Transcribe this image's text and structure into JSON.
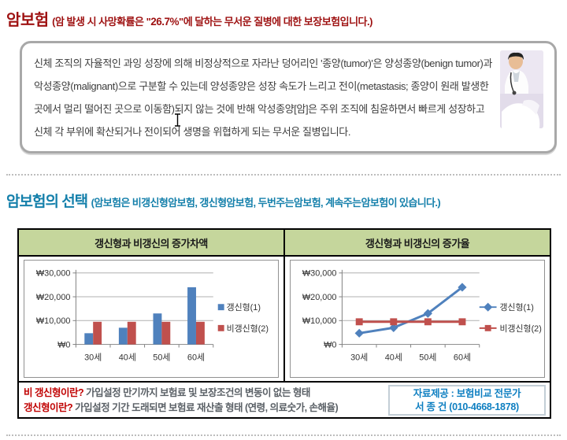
{
  "header": {
    "title": "암보험",
    "subtitle_pre": "(암 발생 시 사망확률은 \"",
    "subtitle_pct": "26.7%",
    "subtitle_post": "\"에 달하는 무서운 질병에 대한 보장보험입니다.)"
  },
  "intro": {
    "text": "신체 조직의 자율적인 과잉 성장에 의해 비정상적으로 자라난 덩어리인 '종양(tumor)'은 양성종양(benign tumor)과 악성종양(malignant)으로 구분할 수 있는데 양성종양은 성장 속도가 느리고 전이(metastasis; 종양이 원래 발생한 곳에서 멀리 떨어진 곳으로 이동함)되지 않는 것에 반해 악성종양[암]은 주위 조직에 침윤하면서 빠르게 성장하고 신체 각 부위에 확산되거나 전이되어 생명을 위협하게 되는 무서운 질병입니다."
  },
  "selection": {
    "title": "암보험의 선택",
    "subtitle": "(암보험은 비갱신형암보험, 갱신형암보험, 두번주는암보험, 계속주는암보험이 있습니다.)"
  },
  "chart_data": [
    {
      "type": "bar",
      "title": "갱신형과 비갱신의 증가차액",
      "categories": [
        "30세",
        "40세",
        "50세",
        "60세"
      ],
      "series": [
        {
          "name": "갱신형(1)",
          "color": "#4F81BD",
          "values": [
            4700,
            7000,
            13000,
            24000
          ]
        },
        {
          "name": "비갱신형(2)",
          "color": "#C0504D",
          "values": [
            9500,
            9500,
            9500,
            9500
          ]
        }
      ],
      "ylim": [
        0,
        30000
      ],
      "yticks": [
        0,
        10000,
        20000,
        30000
      ],
      "ytick_labels": [
        "₩0",
        "₩10,000",
        "₩20,000",
        "₩30,000"
      ],
      "grid": true,
      "legend_position": "right"
    },
    {
      "type": "line",
      "title": "갱신형과 비갱신의 증가율",
      "categories": [
        "30세",
        "40세",
        "50세",
        "60세"
      ],
      "series": [
        {
          "name": "갱신형(1)",
          "color": "#4F81BD",
          "values": [
            4700,
            7000,
            13000,
            24000
          ]
        },
        {
          "name": "비갱신형(2)",
          "color": "#C0504D",
          "values": [
            9500,
            9500,
            9500,
            9500
          ]
        }
      ],
      "ylim": [
        0,
        30000
      ],
      "yticks": [
        0,
        10000,
        20000,
        30000
      ],
      "ytick_labels": [
        "₩0",
        "₩10,000",
        "₩20,000",
        "₩30,000"
      ],
      "grid": true,
      "legend_position": "right"
    }
  ],
  "footer": {
    "def1_label": "비 갱신형이란?",
    "def1_text": "가입설정 만기까지 보험료 및 보장조건의 변동이 없는 형태",
    "def2_label": "갱신형이란?",
    "def2_text": "가입설정 기간 도래되면 보험료 재산출 형태 (연령, 의료숫가, 손해율)",
    "contact_line1": "자료제공 : 보험비교 전문가",
    "contact_line2": "서 종 건 (010-4668-1878)"
  },
  "colors": {
    "title_red": "#9e1111",
    "heading_teal": "#1580ab",
    "chart_header_green": "#c5d69c",
    "series_blue": "#4F81BD",
    "series_red": "#C0504D",
    "def_label_red": "#c00000",
    "contact_blue": "#0e7fc1"
  }
}
